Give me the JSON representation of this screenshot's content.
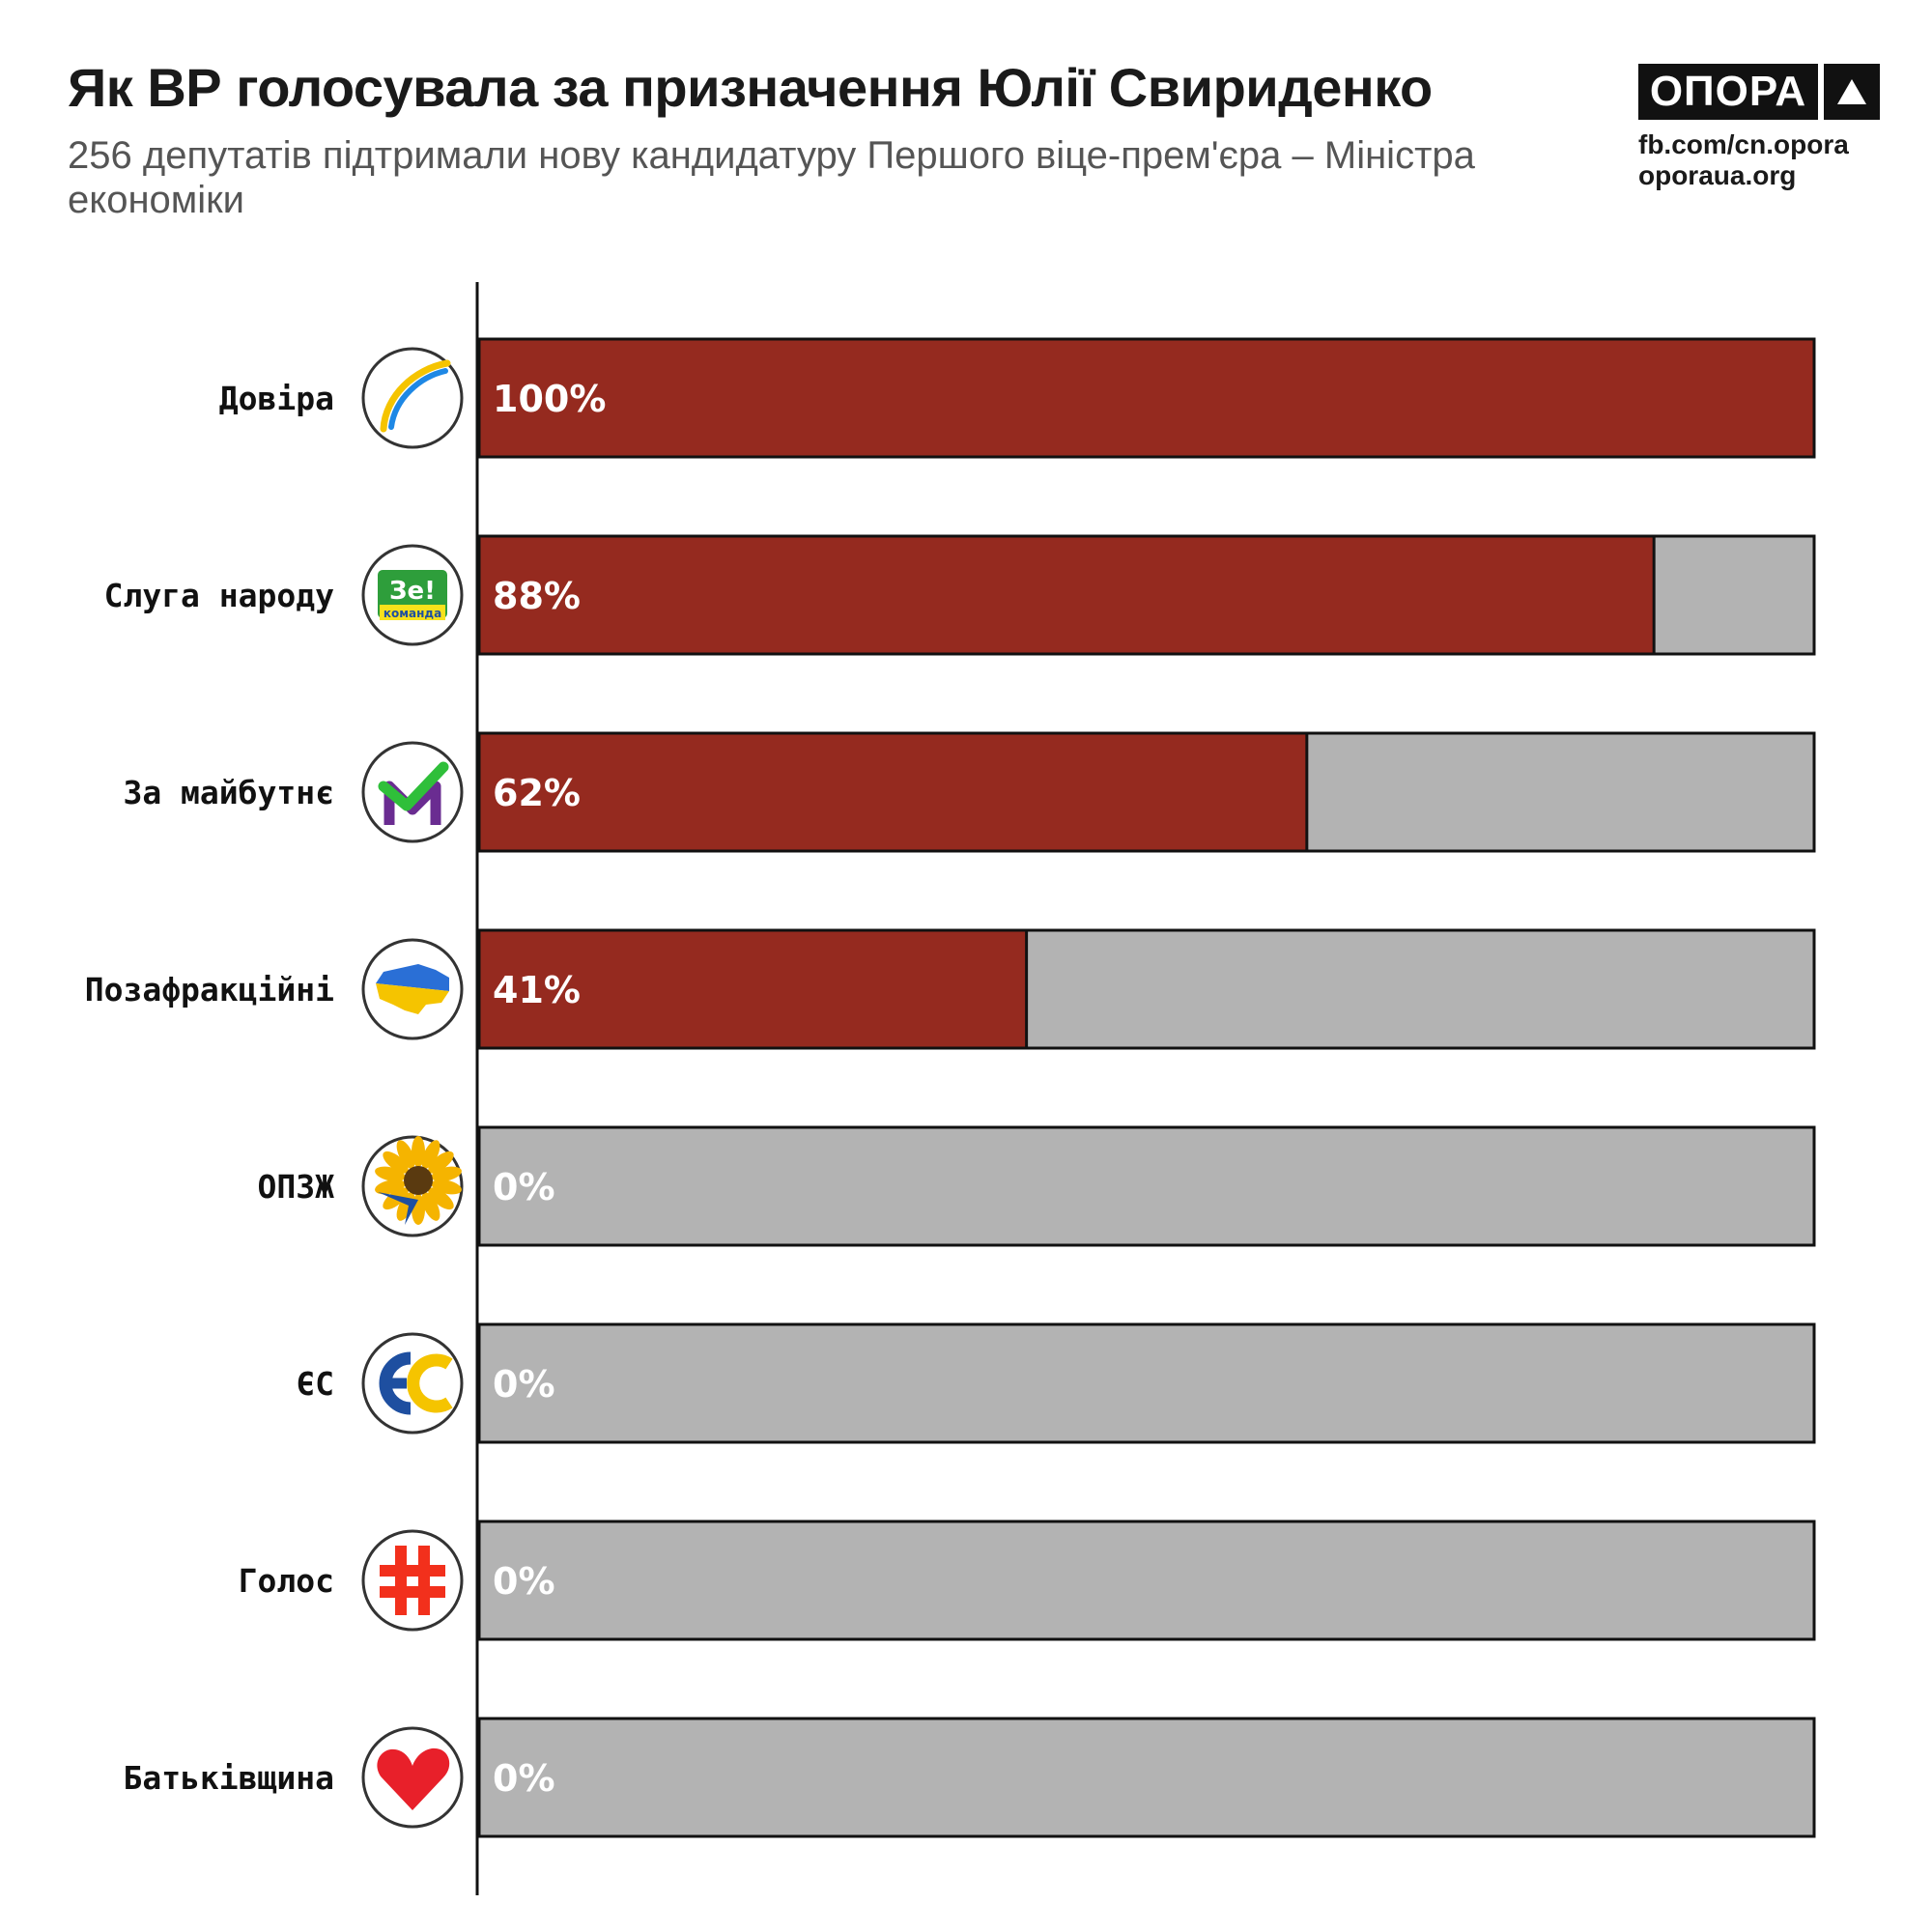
{
  "header": {
    "title": "Як ВР голосувала за призначення Юлії Свириденко",
    "subtitle": "256 депутатів підтримали нову кандидатуру Першого віце-прем'єра – Міністра економіки"
  },
  "brand": {
    "logo_text": "ОПОРА",
    "links": [
      "fb.com/cn.opora",
      "oporaua.org"
    ]
  },
  "colors": {
    "support": "#952A1F",
    "rest": "#B3B3B3",
    "outline": "#111111"
  },
  "chart_data": {
    "type": "bar",
    "orientation": "horizontal",
    "stacked": true,
    "title": "Як ВР голосувала за призначення Юлії Свириденко",
    "categories": [
      "Довіра",
      "Слуга народу",
      "За майбутнє",
      "Позафракційні",
      "ОПЗЖ",
      "ЄС",
      "Голос",
      "Батьківщина"
    ],
    "values": [
      100,
      88,
      62,
      41,
      0,
      0,
      0,
      0
    ],
    "value_labels": [
      "100%",
      "88%",
      "62%",
      "41%",
      "0%",
      "0%",
      "0%",
      "0%"
    ],
    "icons": [
      "dovira-icon",
      "sluha-narodu-icon",
      "za-maibutnie-icon",
      "pozafraktsiini-icon",
      "opzzh-icon",
      "yes-icon",
      "holos-icon",
      "batkivshchyna-icon"
    ],
    "xlim": [
      0,
      100
    ],
    "xlabel": "",
    "ylabel": "",
    "grid": false,
    "legend": "none"
  }
}
